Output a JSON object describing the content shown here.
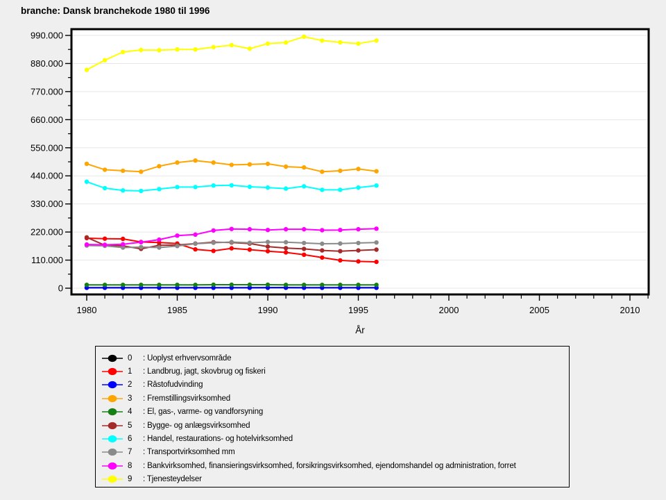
{
  "title": "branche: Dansk branchekode 1980 til 1996",
  "chart_data": {
    "type": "line",
    "title": "branche: Dansk branchekode 1980 til 1996",
    "xlabel": "År",
    "ylabel": "",
    "grid": "horizontal",
    "legend_position": "bottom-box",
    "xlim": [
      1979.157,
      2011.034
    ],
    "ylim": [
      0,
      990000
    ],
    "x_major_ticks": [
      1980,
      1985,
      1990,
      1995,
      2000,
      2005,
      2010
    ],
    "x_minor_step": 1,
    "y_major_ticks": [
      0,
      110000,
      220000,
      330000,
      440000,
      550000,
      660000,
      770000,
      880000,
      990000
    ],
    "y_tick_labels": [
      "0",
      "110.000",
      "220.000",
      "330.000",
      "440.000",
      "550.000",
      "660.000",
      "770.000",
      "880.000",
      "990.000"
    ],
    "y_minor_step": 55000,
    "x": [
      1980,
      1981,
      1982,
      1983,
      1984,
      1985,
      1986,
      1987,
      1988,
      1989,
      1990,
      1991,
      1992,
      1993,
      1994,
      1995,
      1996
    ],
    "series": [
      {
        "key": "0",
        "label": ": Uoplyst erhvervsområde",
        "color": "#000000",
        "values": [
          1500,
          1500,
          1500,
          1500,
          1500,
          1500,
          1500,
          1500,
          1500,
          1500,
          2000,
          2000,
          1500,
          1500,
          1500,
          1500,
          1500
        ]
      },
      {
        "key": "1",
        "label": ": Landbrug, jagt, skovbrug og fiskeri",
        "color": "#ff0000",
        "values": [
          196000,
          194000,
          193000,
          181000,
          179000,
          175000,
          152000,
          146000,
          156000,
          151000,
          145000,
          140000,
          131000,
          120000,
          109000,
          105000,
          103000
        ]
      },
      {
        "key": "2",
        "label": ": Råstofudvinding",
        "color": "#0000ff",
        "values": [
          2000,
          2000,
          2000,
          2000,
          2000,
          2000,
          2000,
          2000,
          2000,
          2000,
          2500,
          2500,
          2000,
          2000,
          2000,
          2000,
          2000
        ]
      },
      {
        "key": "3",
        "label": ": Fremstillingsvirksomhed",
        "color": "#ffa500",
        "values": [
          487000,
          464000,
          460000,
          456000,
          478000,
          492000,
          500000,
          492000,
          483000,
          485000,
          487000,
          476000,
          473000,
          456000,
          460000,
          467000,
          458000
        ]
      },
      {
        "key": "4",
        "label": ": El, gas-, varme- og vandforsyning",
        "color": "#168016",
        "values": [
          13000,
          13000,
          13000,
          13000,
          13000,
          13000,
          13000,
          13500,
          13500,
          13500,
          13500,
          13000,
          13000,
          13000,
          13000,
          13000,
          13000
        ]
      },
      {
        "key": "5",
        "label": ": Bygge- og anlægsvirksomhed",
        "color": "#a52a2a",
        "values": [
          199000,
          168000,
          166000,
          154000,
          168000,
          169000,
          175000,
          180000,
          179000,
          175000,
          163000,
          157000,
          154000,
          148000,
          145000,
          148000,
          151000
        ]
      },
      {
        "key": "6",
        "label": ": Handel, restaurations- og hotelvirksomhed",
        "color": "#00ffff",
        "values": [
          417000,
          392000,
          383000,
          381000,
          388000,
          396000,
          396000,
          402000,
          403000,
          397000,
          394000,
          390000,
          399000,
          385000,
          385000,
          394000,
          402000
        ]
      },
      {
        "key": "7",
        "label": ": Transportvirksomhed mm",
        "color": "#8a8a8a",
        "values": [
          167000,
          166000,
          159000,
          161000,
          159000,
          165000,
          174000,
          178000,
          181000,
          178000,
          181000,
          180000,
          177000,
          174000,
          175000,
          177000,
          179000
        ]
      },
      {
        "key": "8",
        "label": ": Bankvirksomhed, finansieringsvirksomhed, forsikringsvirksomhed, ejendomshandel og administration, forret",
        "color": "#ff00ff",
        "values": [
          171000,
          170000,
          172000,
          180000,
          190000,
          206000,
          210000,
          226000,
          232000,
          231000,
          228000,
          231000,
          231000,
          227000,
          228000,
          231000,
          233000
        ]
      },
      {
        "key": "9",
        "label": ": Tjenesteydelser",
        "color": "#ffff00",
        "values": [
          855000,
          893000,
          925000,
          933000,
          932000,
          935000,
          935000,
          944000,
          952000,
          938000,
          958000,
          962000,
          985000,
          970000,
          963000,
          958000,
          970000
        ]
      }
    ]
  },
  "colors": {
    "background": "#efefef",
    "plot_background": "#ffffff",
    "gridline": "#e7e7e7",
    "axis": "#000000"
  }
}
